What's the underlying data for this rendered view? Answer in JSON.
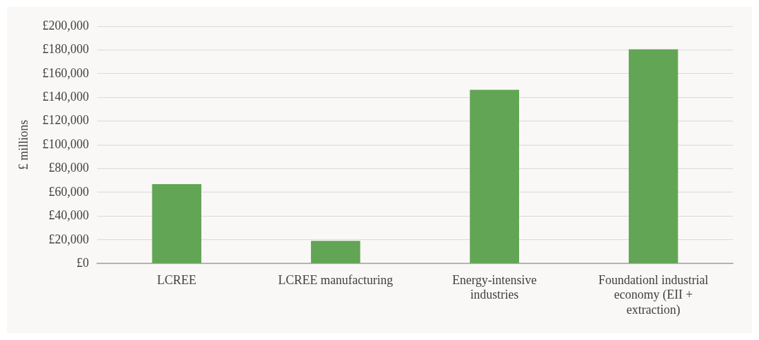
{
  "chart_data": {
    "type": "bar",
    "ylabel": "£ millions",
    "categories": [
      "LCREE",
      "LCREE manufacturing",
      "Energy-intensive industries",
      "Foundationl industrial economy (EII + extraction)"
    ],
    "values": [
      67000,
      19200,
      146400,
      180500
    ],
    "color": "#62a555",
    "ylim": [
      0,
      200000
    ],
    "yticks": [
      {
        "value": 0,
        "label": "£0"
      },
      {
        "value": 20000,
        "label": "£20,000"
      },
      {
        "value": 40000,
        "label": "£40,000"
      },
      {
        "value": 60000,
        "label": "£60,000"
      },
      {
        "value": 80000,
        "label": "£80,000"
      },
      {
        "value": 100000,
        "label": "£100,000"
      },
      {
        "value": 120000,
        "label": "£120,000"
      },
      {
        "value": 140000,
        "label": "£140,000"
      },
      {
        "value": 160000,
        "label": "£160,000"
      },
      {
        "value": 180000,
        "label": "£180,000"
      },
      {
        "value": 200000,
        "label": "£200,000"
      }
    ],
    "grid": "y",
    "legend": false
  }
}
